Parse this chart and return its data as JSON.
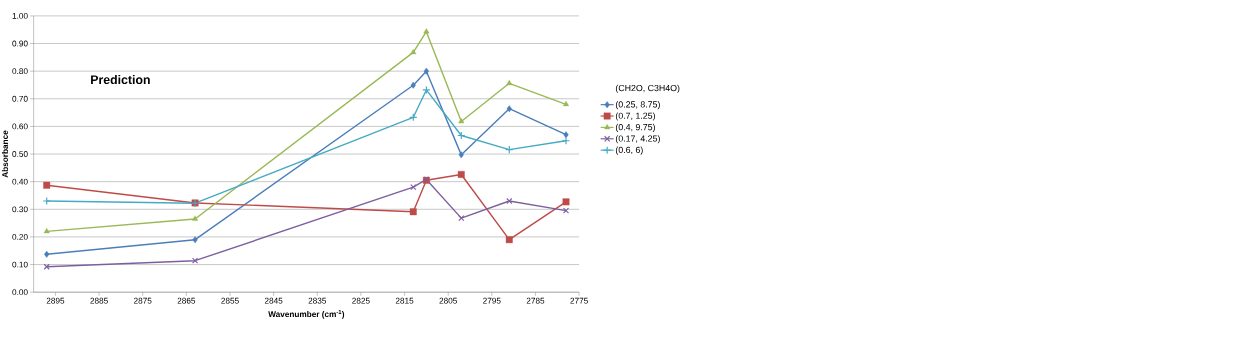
{
  "chart_data": {
    "type": "line",
    "title": "Prediction",
    "xlabel": "Wavenumber (cm$^{-1}$)",
    "ylabel": "Absorbance",
    "legend_title": "(CH2O, C3H4O)",
    "x": [
      2897,
      2863,
      2813,
      2810,
      2802,
      2791,
      2778
    ],
    "series": [
      {
        "name": "(0.25, 8.75)",
        "color": "#4a7ebb",
        "marker": "diamond",
        "values": [
          0.137,
          0.19,
          0.749,
          0.8,
          0.497,
          0.664,
          0.57
        ]
      },
      {
        "name": "(0.7, 1.25)",
        "color": "#be4b48",
        "marker": "square",
        "values": [
          0.387,
          0.323,
          0.291,
          0.405,
          0.426,
          0.19,
          0.327
        ]
      },
      {
        "name": "(0.4, 9.75)",
        "color": "#98b954",
        "marker": "triangle",
        "values": [
          0.22,
          0.265,
          0.868,
          0.943,
          0.618,
          0.756,
          0.68
        ]
      },
      {
        "name": "(0.17, 4.25)",
        "color": "#7d5fa0",
        "marker": "cross",
        "values": [
          0.092,
          0.114,
          0.38,
          0.408,
          0.268,
          0.33,
          0.295
        ]
      },
      {
        "name": "(0.6, 6)",
        "color": "#46aac5",
        "marker": "plus",
        "values": [
          0.33,
          0.322,
          0.633,
          0.732,
          0.567,
          0.516,
          0.548
        ]
      }
    ],
    "xlim": [
      2900,
      2775
    ],
    "xticks": [
      2895,
      2885,
      2875,
      2865,
      2855,
      2845,
      2835,
      2825,
      2815,
      2805,
      2795,
      2785,
      2775
    ],
    "ylim": [
      0,
      1
    ],
    "yticks": [
      {
        "value": 0,
        "label": "0.00"
      },
      {
        "value": 0.1,
        "label": "0.10"
      },
      {
        "value": 0.2,
        "label": "0.20"
      },
      {
        "value": 0.3,
        "label": "0.30"
      },
      {
        "value": 0.4,
        "label": "0.40"
      },
      {
        "value": 0.5,
        "label": "0.50"
      },
      {
        "value": 0.6,
        "label": "0.60"
      },
      {
        "value": 0.7,
        "label": "0.70"
      },
      {
        "value": 0.8,
        "label": "0.80"
      },
      {
        "value": 0.9,
        "label": "0.90"
      },
      {
        "value": 1,
        "label": "1.00"
      }
    ],
    "grid": "y",
    "legend": "right",
    "line_style": "solid"
  }
}
